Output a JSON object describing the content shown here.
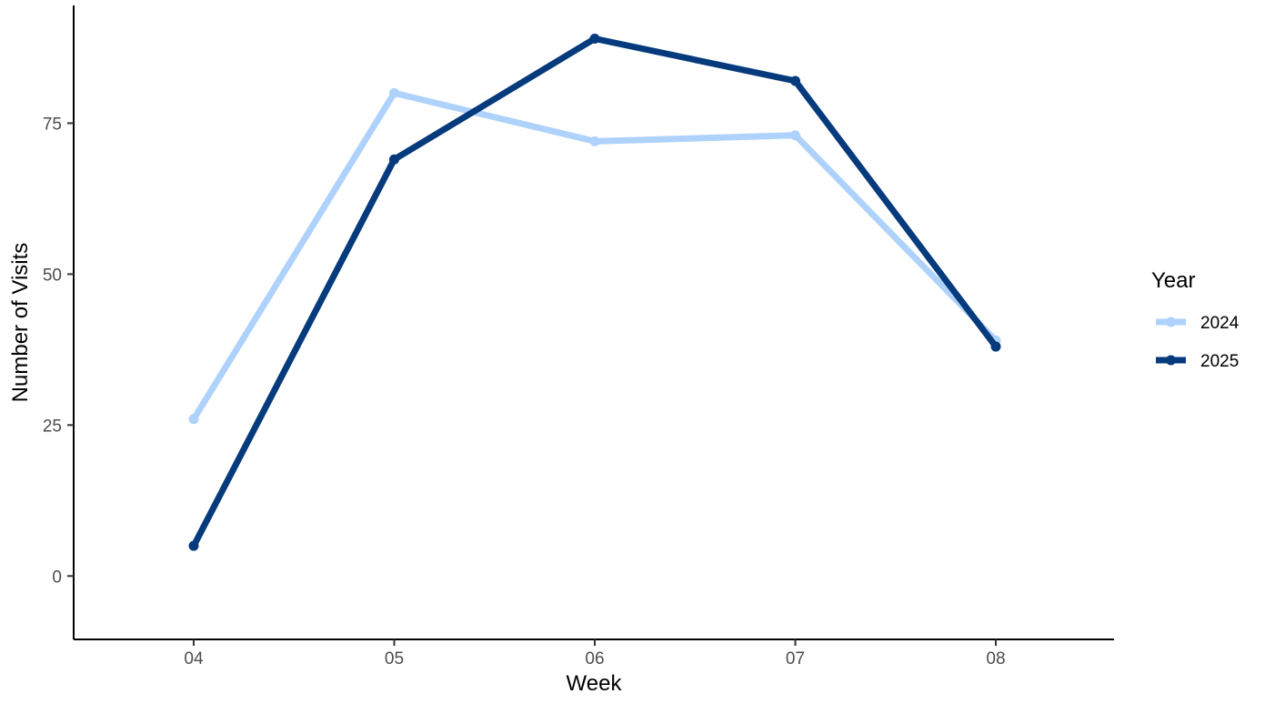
{
  "chart_data": {
    "type": "line",
    "x": [
      "04",
      "05",
      "06",
      "07",
      "08"
    ],
    "xlabel": "Week",
    "ylabel": "Number of Visits",
    "ylim": [
      -10.5,
      94.5
    ],
    "yticks": [
      0,
      25,
      50,
      75
    ],
    "grid": false,
    "legend": {
      "title": "Year",
      "position": "right"
    },
    "series": [
      {
        "name": "2024",
        "color": "#aed2fb",
        "values": [
          26,
          80,
          72,
          73,
          39
        ]
      },
      {
        "name": "2025",
        "color": "#053a7c",
        "values": [
          5,
          69,
          89,
          82,
          38
        ]
      }
    ]
  }
}
